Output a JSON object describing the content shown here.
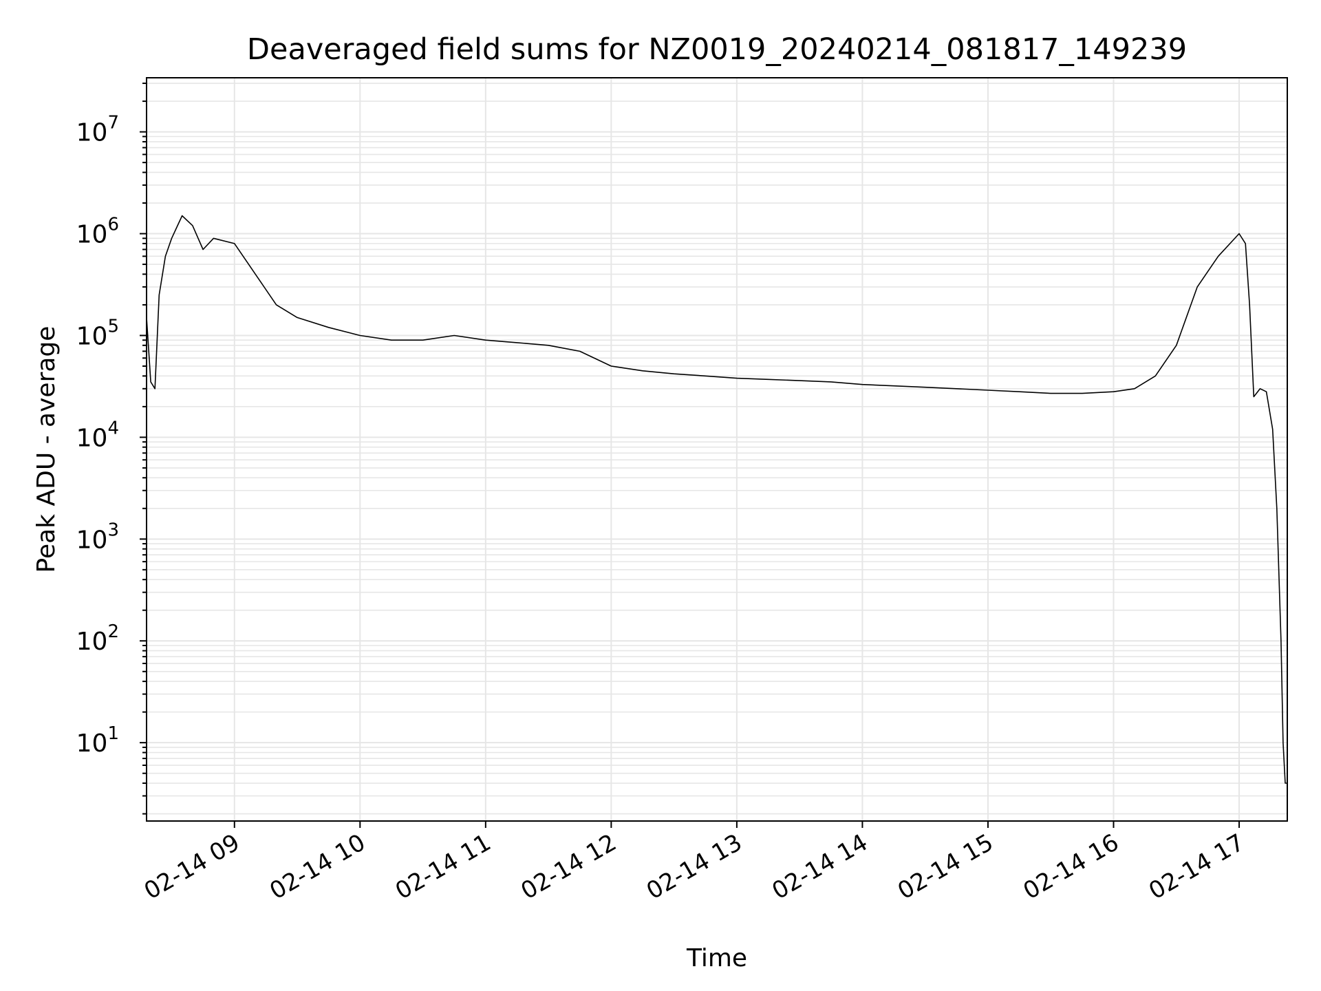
{
  "chart_data": {
    "type": "line",
    "title": "Deaveraged field sums for NZ0019_20240214_081817_149239",
    "xlabel": "Time",
    "ylabel": "Peak ADU - average",
    "yscale": "log",
    "ylim": [
      1.7,
      34000000
    ],
    "xlim": [
      "02-14 08:18",
      "02-14 17:23"
    ],
    "grid": true,
    "line_color": "#000000",
    "grid_color": "#e6e6e6",
    "x_ticks": [
      {
        "time": "02-14 09:00",
        "label": "02-14 09"
      },
      {
        "time": "02-14 10:00",
        "label": "02-14 10"
      },
      {
        "time": "02-14 11:00",
        "label": "02-14 11"
      },
      {
        "time": "02-14 12:00",
        "label": "02-14 12"
      },
      {
        "time": "02-14 13:00",
        "label": "02-14 13"
      },
      {
        "time": "02-14 14:00",
        "label": "02-14 14"
      },
      {
        "time": "02-14 15:00",
        "label": "02-14 15"
      },
      {
        "time": "02-14 16:00",
        "label": "02-14 16"
      },
      {
        "time": "02-14 17:00",
        "label": "02-14 17"
      }
    ],
    "y_ticks": [
      {
        "value": 10,
        "base": "10",
        "exp": "1"
      },
      {
        "value": 100,
        "base": "10",
        "exp": "2"
      },
      {
        "value": 1000,
        "base": "10",
        "exp": "3"
      },
      {
        "value": 10000,
        "base": "10",
        "exp": "4"
      },
      {
        "value": 100000,
        "base": "10",
        "exp": "5"
      },
      {
        "value": 1000000,
        "base": "10",
        "exp": "6"
      },
      {
        "value": 10000000,
        "base": "10",
        "exp": "7"
      }
    ],
    "series": [
      {
        "x": [
          "02-14 08:18",
          "02-14 08:20",
          "02-14 08:22",
          "02-14 08:24",
          "02-14 08:27",
          "02-14 08:30",
          "02-14 08:35",
          "02-14 08:40",
          "02-14 08:45",
          "02-14 08:50",
          "02-14 09:00",
          "02-14 09:10",
          "02-14 09:20",
          "02-14 09:30",
          "02-14 09:45",
          "02-14 10:00",
          "02-14 10:15",
          "02-14 10:30",
          "02-14 10:45",
          "02-14 11:00",
          "02-14 11:15",
          "02-14 11:30",
          "02-14 11:45",
          "02-14 12:00",
          "02-14 12:15",
          "02-14 12:30",
          "02-14 12:45",
          "02-14 13:00",
          "02-14 13:15",
          "02-14 13:30",
          "02-14 13:45",
          "02-14 14:00",
          "02-14 14:15",
          "02-14 14:30",
          "02-14 14:45",
          "02-14 15:00",
          "02-14 15:15",
          "02-14 15:30",
          "02-14 15:45",
          "02-14 16:00",
          "02-14 16:10",
          "02-14 16:20",
          "02-14 16:30",
          "02-14 16:40",
          "02-14 16:50",
          "02-14 17:00",
          "02-14 17:03",
          "02-14 17:05",
          "02-14 17:07",
          "02-14 17:10",
          "02-14 17:13",
          "02-14 17:16",
          "02-14 17:18",
          "02-14 17:20",
          "02-14 17:21",
          "02-14 17:22",
          "02-14 17:23"
        ],
        "y": [
          150000,
          35000,
          30000,
          250000,
          600000,
          900000,
          1500000,
          1200000,
          700000,
          900000,
          800000,
          400000,
          200000,
          150000,
          120000,
          100000,
          90000,
          90000,
          100000,
          90000,
          85000,
          80000,
          70000,
          50000,
          45000,
          42000,
          40000,
          38000,
          37000,
          36000,
          35000,
          33000,
          32000,
          31000,
          30000,
          29000,
          28000,
          27000,
          27000,
          28000,
          30000,
          40000,
          80000,
          300000,
          600000,
          1000000,
          800000,
          200000,
          25000,
          30000,
          28000,
          12000,
          2000,
          100,
          10,
          4,
          4
        ]
      }
    ]
  }
}
